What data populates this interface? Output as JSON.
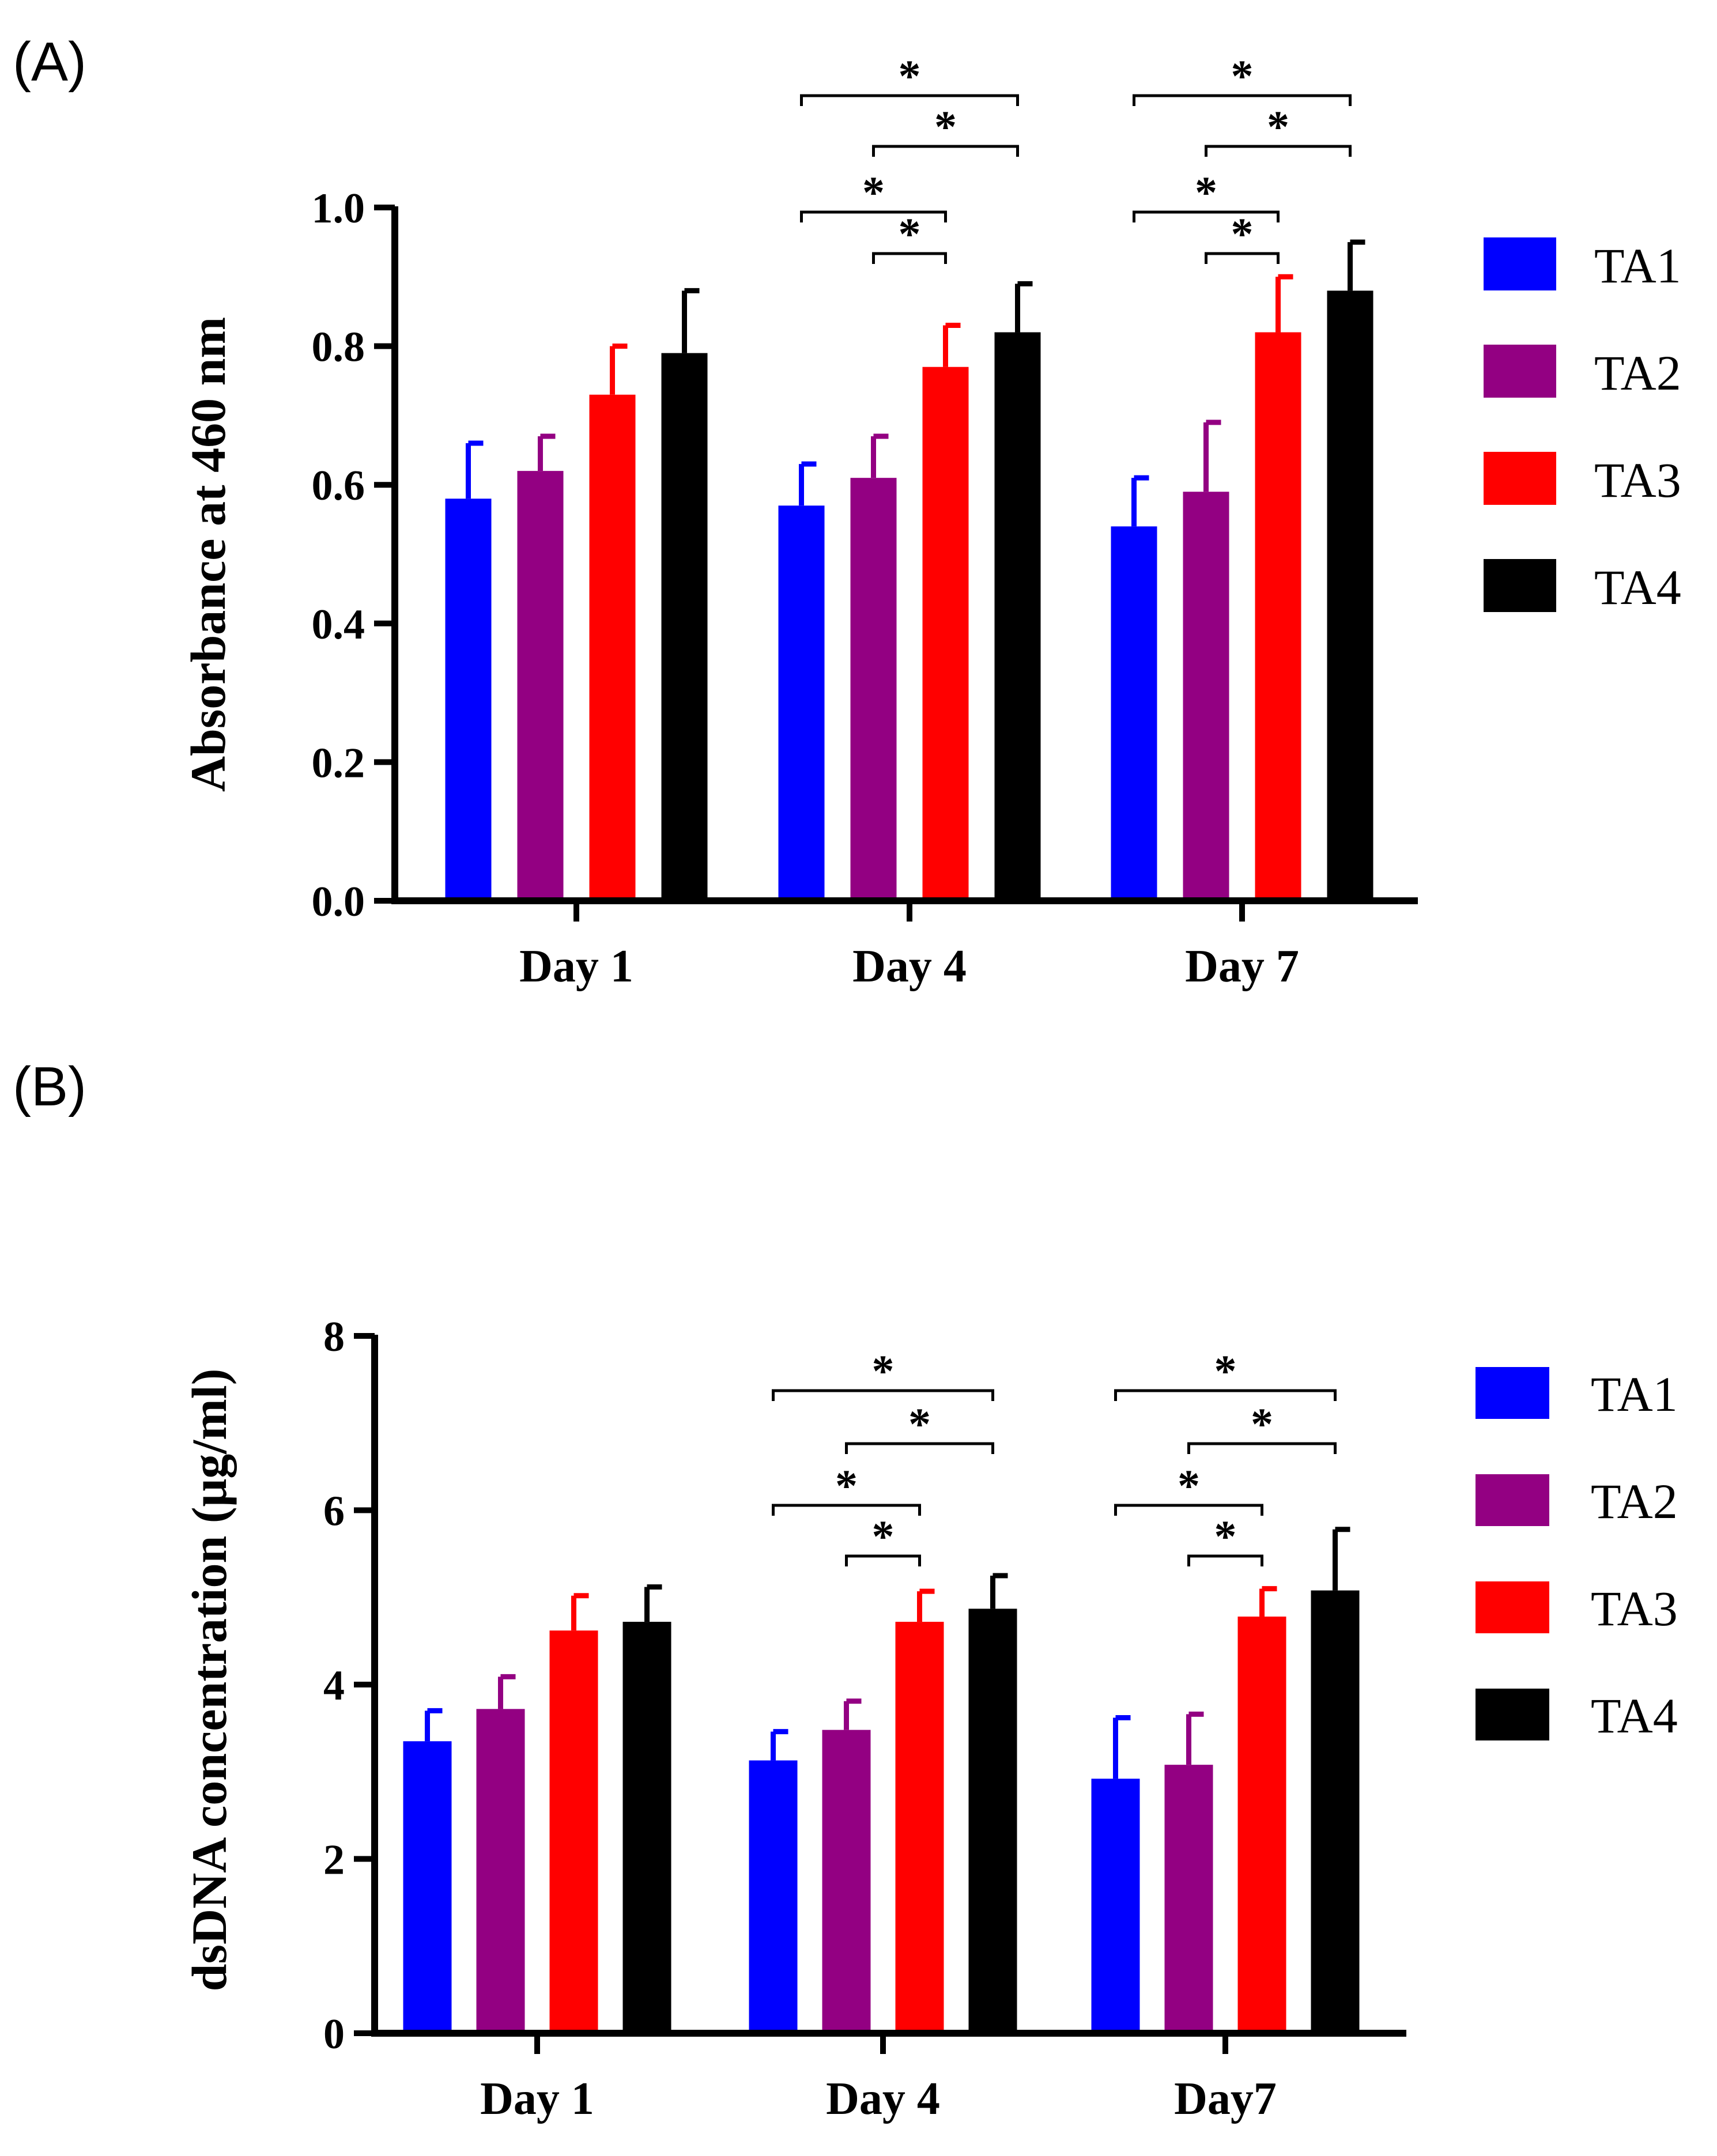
{
  "chart_data": [
    {
      "panel_label": "(A)",
      "type": "bar",
      "ylabel": "Absorbance at 460 nm",
      "xlabel": "",
      "ylim": [
        0,
        1.0
      ],
      "yticks": [
        "0.0",
        "0.2",
        "0.4",
        "0.6",
        "0.8",
        "1.0"
      ],
      "categories": [
        "Day 1",
        "Day 4",
        "Day 7"
      ],
      "series": [
        {
          "name": "TA1",
          "color": "#0000ff",
          "values": [
            0.58,
            0.57,
            0.54
          ],
          "errors": [
            0.08,
            0.06,
            0.07
          ]
        },
        {
          "name": "TA2",
          "color": "#930082",
          "values": [
            0.62,
            0.61,
            0.59
          ],
          "errors": [
            0.05,
            0.06,
            0.1
          ]
        },
        {
          "name": "TA3",
          "color": "#ff0000",
          "values": [
            0.73,
            0.77,
            0.82
          ],
          "errors": [
            0.07,
            0.06,
            0.08
          ]
        },
        {
          "name": "TA4",
          "color": "#000000",
          "values": [
            0.79,
            0.82,
            0.88
          ],
          "errors": [
            0.09,
            0.07,
            0.07
          ]
        }
      ],
      "significance": [
        {
          "category": 1,
          "from": 0,
          "to": 3,
          "label": "*"
        },
        {
          "category": 1,
          "from": 1,
          "to": 3,
          "label": "*"
        },
        {
          "category": 1,
          "from": 0,
          "to": 2,
          "label": "*"
        },
        {
          "category": 1,
          "from": 1,
          "to": 2,
          "label": "*"
        },
        {
          "category": 2,
          "from": 0,
          "to": 3,
          "label": "*"
        },
        {
          "category": 2,
          "from": 1,
          "to": 3,
          "label": "*"
        },
        {
          "category": 2,
          "from": 0,
          "to": 2,
          "label": "*"
        },
        {
          "category": 2,
          "from": 1,
          "to": 2,
          "label": "*"
        }
      ],
      "legend_position": "right"
    },
    {
      "panel_label": "(B)",
      "type": "bar",
      "ylabel": "dsDNA concentration (μg/ml)",
      "xlabel": "",
      "ylim": [
        0,
        8
      ],
      "yticks": [
        "0",
        "2",
        "4",
        "6",
        "8"
      ],
      "categories": [
        "Day 1",
        "Day 4",
        "Day7"
      ],
      "series": [
        {
          "name": "TA1",
          "color": "#0000ff",
          "values": [
            3.35,
            3.13,
            2.92
          ],
          "errors": [
            0.35,
            0.33,
            0.7
          ]
        },
        {
          "name": "TA2",
          "color": "#930082",
          "values": [
            3.72,
            3.48,
            3.08
          ],
          "errors": [
            0.37,
            0.33,
            0.58
          ]
        },
        {
          "name": "TA3",
          "color": "#ff0000",
          "values": [
            4.62,
            4.72,
            4.78
          ],
          "errors": [
            0.4,
            0.35,
            0.32
          ]
        },
        {
          "name": "TA4",
          "color": "#000000",
          "values": [
            4.72,
            4.87,
            5.08
          ],
          "errors": [
            0.4,
            0.38,
            0.7
          ]
        }
      ],
      "significance": [
        {
          "category": 1,
          "from": 0,
          "to": 3,
          "label": "*"
        },
        {
          "category": 1,
          "from": 1,
          "to": 3,
          "label": "*"
        },
        {
          "category": 1,
          "from": 0,
          "to": 2,
          "label": "*"
        },
        {
          "category": 1,
          "from": 1,
          "to": 2,
          "label": "*"
        },
        {
          "category": 2,
          "from": 0,
          "to": 3,
          "label": "*"
        },
        {
          "category": 2,
          "from": 1,
          "to": 3,
          "label": "*"
        },
        {
          "category": 2,
          "from": 0,
          "to": 2,
          "label": "*"
        },
        {
          "category": 2,
          "from": 1,
          "to": 2,
          "label": "*"
        }
      ],
      "legend_position": "right"
    }
  ]
}
